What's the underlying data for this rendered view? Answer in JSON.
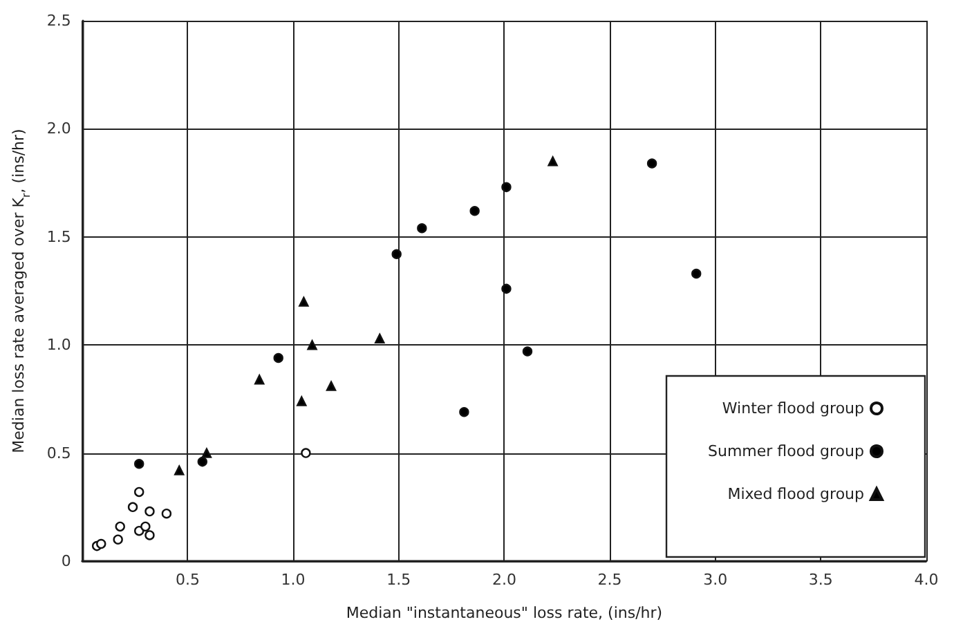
{
  "chart_data": {
    "type": "scatter",
    "xlabel": "Median \"instantaneous\" loss rate, (ins/hr)",
    "ylabel": "Median loss rate averaged over K$_{r}$, (ins/hr)",
    "xlim": [
      0,
      4
    ],
    "xticks": [
      {
        "value": 0,
        "label": null
      },
      {
        "value": 0.5,
        "label": "0.5"
      },
      {
        "value": 1,
        "label": "1.0"
      },
      {
        "value": 1.5,
        "label": "1.5"
      },
      {
        "value": 2,
        "label": "2.0"
      },
      {
        "value": 2.5,
        "label": "2.5"
      },
      {
        "value": 3,
        "label": "3.0"
      },
      {
        "value": 3.5,
        "label": "3.5"
      },
      {
        "value": 4,
        "label": "4.0"
      }
    ],
    "ylim": [
      0,
      2.5
    ],
    "yticks": [
      0,
      {
        "value": 0.5,
        "label": "0.5"
      },
      {
        "value": 1,
        "label": "1.0"
      },
      {
        "value": 1.5,
        "label": "1.5"
      },
      {
        "value": 2,
        "label": "2.0"
      },
      {
        "value": 2.5,
        "label": "2.5"
      }
    ],
    "grid": true,
    "legend": "bottom right",
    "series": [
      {
        "name": "Winter flood group",
        "color": "#ffffff",
        "marker": "circle",
        "x": [
          0.07,
          0.09,
          0.17,
          0.18,
          0.24,
          0.27,
          0.27,
          0.3,
          0.32,
          0.32,
          0.4,
          1.06
        ],
        "values": [
          0.07,
          0.08,
          0.1,
          0.16,
          0.25,
          0.32,
          0.14,
          0.16,
          0.12,
          0.23,
          0.22,
          0.5
        ]
      },
      {
        "name": "Summer flood group",
        "color": "#000000",
        "marker": "circle",
        "x": [
          0.27,
          0.57,
          0.93,
          1.81,
          2.11,
          2.01,
          1.49,
          1.61,
          1.86,
          2.7,
          2.01,
          2.91
        ],
        "values": [
          0.45,
          0.46,
          0.94,
          0.69,
          0.97,
          1.26,
          1.42,
          1.54,
          1.62,
          1.84,
          1.73,
          1.33
        ]
      },
      {
        "name": "Mixed flood group",
        "color": "#000000",
        "marker": "triangle",
        "x": [
          0.46,
          0.59,
          0.84,
          1.05,
          1.09,
          1.04,
          1.18,
          1.41,
          2.23
        ],
        "values": [
          0.42,
          0.5,
          0.84,
          1.2,
          1.0,
          0.74,
          0.81,
          1.03,
          1.85
        ]
      }
    ]
  }
}
